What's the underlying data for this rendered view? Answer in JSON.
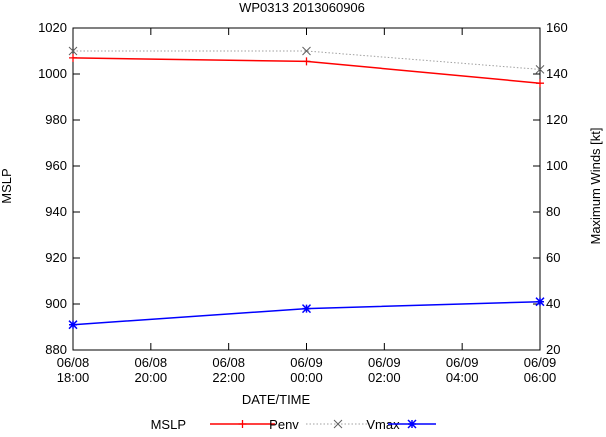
{
  "chart_data": {
    "type": "line",
    "title": "WP0313 2013060906",
    "xlabel": "DATE/TIME",
    "ylabel_left": "MSLP",
    "ylabel_right": "Maximum Winds [kt]",
    "x_ticks": [
      {
        "label": [
          "06/08",
          "18:00"
        ],
        "hours": 0
      },
      {
        "label": [
          "06/08",
          "20:00"
        ],
        "hours": 2
      },
      {
        "label": [
          "06/08",
          "22:00"
        ],
        "hours": 4
      },
      {
        "label": [
          "06/09",
          "00:00"
        ],
        "hours": 6
      },
      {
        "label": [
          "06/09",
          "02:00"
        ],
        "hours": 8
      },
      {
        "label": [
          "06/09",
          "04:00"
        ],
        "hours": 10
      },
      {
        "label": [
          "06/09",
          "06:00"
        ],
        "hours": 12
      }
    ],
    "xlim": [
      0,
      12
    ],
    "ylim_left": [
      880,
      1020
    ],
    "yticks_left": [
      880,
      900,
      920,
      940,
      960,
      980,
      1000,
      1020
    ],
    "ylim_right": [
      20,
      160
    ],
    "yticks_right": [
      20,
      40,
      60,
      80,
      100,
      120,
      140,
      160
    ],
    "legend_title": "MSLP",
    "series": [
      {
        "name": "Penv",
        "axis": "left",
        "color": "#ff0000",
        "marker": "plus",
        "style": "solid",
        "x": [
          0,
          6,
          12
        ],
        "values": [
          1007,
          1005.5,
          996
        ]
      },
      {
        "name": "",
        "axis": "left",
        "color": "#0000ff",
        "marker": "star",
        "style": "solid",
        "x": [
          0,
          6,
          12
        ],
        "values": [
          891,
          898,
          901
        ]
      },
      {
        "name": "Vmax",
        "axis": "right",
        "color": "#a0a0a0",
        "marker": "cross",
        "style": "dotted",
        "x": [
          0,
          6,
          12
        ],
        "values": [
          150,
          150,
          142
        ]
      }
    ],
    "legend_order": [
      "Penv",
      "Vmax",
      "_blue"
    ]
  }
}
